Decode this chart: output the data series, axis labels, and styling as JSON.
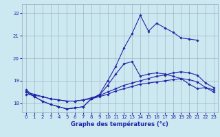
{
  "line1_hours": [
    0,
    1,
    2,
    3,
    4,
    5,
    6,
    7,
    8,
    9,
    10,
    11,
    12,
    13,
    14,
    15,
    16,
    17,
    18,
    19,
    20,
    21
  ],
  "line1_vals": [
    18.6,
    18.3,
    18.1,
    17.95,
    17.85,
    17.75,
    17.8,
    17.85,
    18.2,
    18.4,
    19.0,
    19.65,
    20.45,
    21.1,
    21.9,
    21.2,
    21.55,
    21.35,
    21.15,
    20.9,
    20.85,
    20.8
  ],
  "line2_hours": [
    0,
    1,
    2,
    3,
    4,
    5,
    6,
    7,
    8,
    9,
    10,
    11,
    12,
    13,
    14,
    15,
    16,
    17,
    18,
    19,
    20,
    21,
    22,
    23
  ],
  "line2_vals": [
    18.5,
    18.3,
    18.1,
    17.95,
    17.85,
    17.75,
    17.8,
    17.85,
    18.2,
    18.35,
    18.8,
    19.3,
    19.75,
    19.85,
    19.2,
    19.3,
    19.35,
    19.3,
    19.2,
    19.1,
    18.85,
    18.65,
    18.7,
    18.6
  ],
  "line3_hours": [
    0,
    1,
    2,
    3,
    4,
    5,
    6,
    7,
    8,
    9,
    10,
    11,
    12,
    13,
    14,
    15,
    16,
    17,
    18,
    19,
    20,
    21,
    22,
    23
  ],
  "line3_vals": [
    18.5,
    18.4,
    18.3,
    18.2,
    18.15,
    18.1,
    18.1,
    18.15,
    18.25,
    18.35,
    18.5,
    18.65,
    18.8,
    18.9,
    19.0,
    19.1,
    19.2,
    19.25,
    19.35,
    19.4,
    19.35,
    19.25,
    18.9,
    18.7
  ],
  "line4_hours": [
    0,
    1,
    2,
    3,
    4,
    5,
    6,
    7,
    8,
    9,
    10,
    11,
    12,
    13,
    14,
    15,
    16,
    17,
    18,
    19,
    20,
    21,
    22,
    23
  ],
  "line4_vals": [
    18.4,
    18.35,
    18.3,
    18.2,
    18.15,
    18.1,
    18.1,
    18.15,
    18.2,
    18.3,
    18.4,
    18.55,
    18.65,
    18.75,
    18.85,
    18.9,
    18.95,
    19.0,
    19.05,
    19.1,
    19.05,
    18.95,
    18.7,
    18.5
  ],
  "xlabel": "Graphe des températures (°c)",
  "ylim": [
    17.6,
    22.4
  ],
  "xlim": [
    -0.5,
    23.5
  ],
  "yticks": [
    18,
    19,
    20,
    21,
    22
  ],
  "xticks": [
    0,
    1,
    2,
    3,
    4,
    5,
    6,
    7,
    8,
    9,
    10,
    11,
    12,
    13,
    14,
    15,
    16,
    17,
    18,
    19,
    20,
    21,
    22,
    23
  ],
  "line_color": "#2222aa",
  "bg_color": "#cce8f0",
  "grid_color": "#99aabb",
  "marker": "D",
  "marker_size": 1.8,
  "linewidth": 0.8,
  "tick_fontsize": 5.0,
  "xlabel_fontsize": 6.0
}
